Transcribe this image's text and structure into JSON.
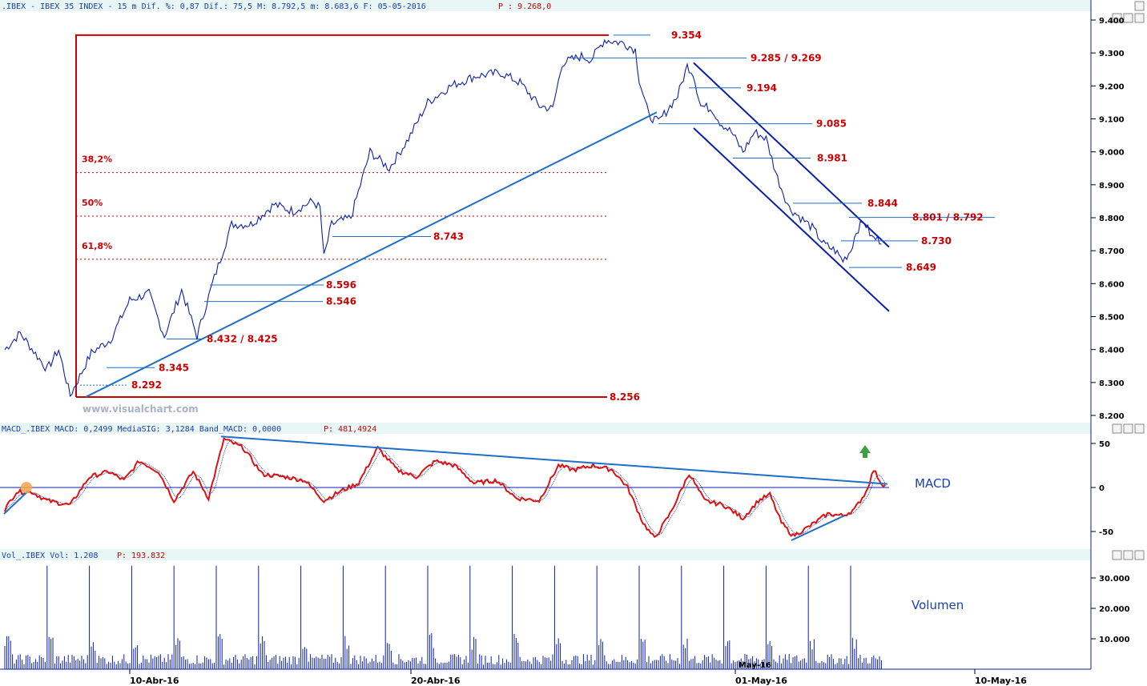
{
  "header": {
    "price": ".IBEX - IBEX 35 INDEX -  15 m Dif. %: 0,87 Dif.: 75,5 M: 8.792,5 m: 8.683,6 F: 05-05-2016",
    "price_p": "P : 9.268,0",
    "macd": "MACD_.IBEX MACD: 0,2499 MediaSIG: 3,1284 Band_MACD: 0,0000",
    "macd_p": "P: 481,4924",
    "vol": "Vol_.IBEX Vol: 1.208",
    "vol_p": "P: 193.832"
  },
  "watermark": "www.visualchart.com",
  "colors": {
    "price_line": "#0b1fa8",
    "trend": "#1f6fc9",
    "levels": "#cc0000",
    "macd": "#dd1111",
    "signal": "#0b1fa8",
    "volume": "#0b1fa8",
    "axis_bg": "#e9f6f6"
  },
  "chart_data": [
    {
      "type": "line",
      "name": "price",
      "ylim": [
        8200,
        9400
      ],
      "yticks": [
        "9.400",
        "9.300",
        "9.200",
        "9.100",
        "9.000",
        "8.900",
        "8.800",
        "8.700",
        "8.600",
        "8.500",
        "8.400",
        "8.300",
        "8.200"
      ],
      "xticks": [
        "10-Abr-16",
        "20-Abr-16",
        "01-May-16",
        "10-May-16"
      ],
      "levels": [
        {
          "label": "9.354",
          "value": 9354
        },
        {
          "label": "9.285 / 9.269",
          "value": 9285
        },
        {
          "label": "9.194",
          "value": 9194
        },
        {
          "label": "9.085",
          "value": 9085
        },
        {
          "label": "8.981",
          "value": 8981
        },
        {
          "label": "8.844",
          "value": 8844
        },
        {
          "label": "8.801 / 8.792",
          "value": 8801
        },
        {
          "label": "8.743",
          "value": 8743
        },
        {
          "label": "8.730",
          "value": 8730
        },
        {
          "label": "8.649",
          "value": 8649
        },
        {
          "label": "8.596",
          "value": 8596
        },
        {
          "label": "8.546",
          "value": 8546
        },
        {
          "label": "8.432 / 8.425",
          "value": 8432
        },
        {
          "label": "8.345",
          "value": 8345
        },
        {
          "label": "8.292",
          "value": 8292
        },
        {
          "label": "8.256",
          "value": 8256
        }
      ],
      "fibonacci": [
        {
          "label": "38,2%",
          "value": 8937
        },
        {
          "label": "50%",
          "value": 8805
        },
        {
          "label": "61,8%",
          "value": 8674
        }
      ],
      "key_points": [
        {
          "bar": 0,
          "value": 8400
        },
        {
          "bar": 8,
          "value": 8450
        },
        {
          "bar": 22,
          "value": 8340
        },
        {
          "bar": 28,
          "value": 8400
        },
        {
          "bar": 34,
          "value": 8260
        },
        {
          "bar": 45,
          "value": 8390
        },
        {
          "bar": 55,
          "value": 8430
        },
        {
          "bar": 65,
          "value": 8550
        },
        {
          "bar": 75,
          "value": 8570
        },
        {
          "bar": 83,
          "value": 8440
        },
        {
          "bar": 92,
          "value": 8580
        },
        {
          "bar": 100,
          "value": 8440
        },
        {
          "bar": 108,
          "value": 8600
        },
        {
          "bar": 118,
          "value": 8780
        },
        {
          "bar": 128,
          "value": 8780
        },
        {
          "bar": 140,
          "value": 8840
        },
        {
          "bar": 150,
          "value": 8820
        },
        {
          "bar": 160,
          "value": 8850
        },
        {
          "bar": 164,
          "value": 8830
        },
        {
          "bar": 166,
          "value": 8680
        },
        {
          "bar": 170,
          "value": 8780
        },
        {
          "bar": 180,
          "value": 8800
        },
        {
          "bar": 190,
          "value": 9000
        },
        {
          "bar": 200,
          "value": 8950
        },
        {
          "bar": 210,
          "value": 9040
        },
        {
          "bar": 220,
          "value": 9150
        },
        {
          "bar": 232,
          "value": 9200
        },
        {
          "bar": 245,
          "value": 9230
        },
        {
          "bar": 258,
          "value": 9240
        },
        {
          "bar": 268,
          "value": 9210
        },
        {
          "bar": 278,
          "value": 9140
        },
        {
          "bar": 285,
          "value": 9130
        },
        {
          "bar": 290,
          "value": 9270
        },
        {
          "bar": 300,
          "value": 9290
        },
        {
          "bar": 305,
          "value": 9280
        },
        {
          "bar": 312,
          "value": 9340
        },
        {
          "bar": 322,
          "value": 9330
        },
        {
          "bar": 328,
          "value": 9310
        },
        {
          "bar": 330,
          "value": 9220
        },
        {
          "bar": 335,
          "value": 9110
        },
        {
          "bar": 340,
          "value": 9090
        },
        {
          "bar": 345,
          "value": 9130
        },
        {
          "bar": 350,
          "value": 9170
        },
        {
          "bar": 355,
          "value": 9260
        },
        {
          "bar": 358,
          "value": 9240
        },
        {
          "bar": 362,
          "value": 9140
        },
        {
          "bar": 368,
          "value": 9130
        },
        {
          "bar": 372,
          "value": 9090
        },
        {
          "bar": 378,
          "value": 9060
        },
        {
          "bar": 384,
          "value": 9000
        },
        {
          "bar": 390,
          "value": 9060
        },
        {
          "bar": 396,
          "value": 9040
        },
        {
          "bar": 402,
          "value": 8920
        },
        {
          "bar": 408,
          "value": 8830
        },
        {
          "bar": 414,
          "value": 8800
        },
        {
          "bar": 420,
          "value": 8770
        },
        {
          "bar": 426,
          "value": 8720
        },
        {
          "bar": 432,
          "value": 8700
        },
        {
          "bar": 436,
          "value": 8670
        },
        {
          "bar": 440,
          "value": 8700
        },
        {
          "bar": 443,
          "value": 8760
        },
        {
          "bar": 447,
          "value": 8790
        },
        {
          "bar": 451,
          "value": 8740
        },
        {
          "bar": 456,
          "value": 8730
        }
      ]
    },
    {
      "type": "line",
      "name": "MACD",
      "ylim": [
        -75,
        70
      ],
      "yticks": [
        "50",
        "0",
        "-50"
      ],
      "key_points": [
        {
          "bar": 0,
          "value": -25
        },
        {
          "bar": 6,
          "value": -5
        },
        {
          "bar": 14,
          "value": -5
        },
        {
          "bar": 22,
          "value": -15
        },
        {
          "bar": 34,
          "value": -20
        },
        {
          "bar": 44,
          "value": 12
        },
        {
          "bar": 54,
          "value": 18
        },
        {
          "bar": 62,
          "value": 8
        },
        {
          "bar": 70,
          "value": 30
        },
        {
          "bar": 80,
          "value": 18
        },
        {
          "bar": 88,
          "value": -15
        },
        {
          "bar": 98,
          "value": 18
        },
        {
          "bar": 106,
          "value": -12
        },
        {
          "bar": 114,
          "value": 55
        },
        {
          "bar": 124,
          "value": 45
        },
        {
          "bar": 134,
          "value": 15
        },
        {
          "bar": 146,
          "value": 12
        },
        {
          "bar": 156,
          "value": 8
        },
        {
          "bar": 166,
          "value": -15
        },
        {
          "bar": 174,
          "value": -5
        },
        {
          "bar": 184,
          "value": 5
        },
        {
          "bar": 194,
          "value": 45
        },
        {
          "bar": 204,
          "value": 20
        },
        {
          "bar": 214,
          "value": 12
        },
        {
          "bar": 224,
          "value": 30
        },
        {
          "bar": 234,
          "value": 25
        },
        {
          "bar": 244,
          "value": 5
        },
        {
          "bar": 256,
          "value": 8
        },
        {
          "bar": 266,
          "value": -12
        },
        {
          "bar": 278,
          "value": -15
        },
        {
          "bar": 288,
          "value": 25
        },
        {
          "bar": 296,
          "value": 20
        },
        {
          "bar": 306,
          "value": 25
        },
        {
          "bar": 316,
          "value": 20
        },
        {
          "bar": 324,
          "value": 0
        },
        {
          "bar": 332,
          "value": -40
        },
        {
          "bar": 338,
          "value": -58
        },
        {
          "bar": 346,
          "value": -30
        },
        {
          "bar": 356,
          "value": 16
        },
        {
          "bar": 364,
          "value": -15
        },
        {
          "bar": 374,
          "value": -20
        },
        {
          "bar": 384,
          "value": -35
        },
        {
          "bar": 392,
          "value": -15
        },
        {
          "bar": 398,
          "value": -8
        },
        {
          "bar": 404,
          "value": -40
        },
        {
          "bar": 410,
          "value": -55
        },
        {
          "bar": 418,
          "value": -45
        },
        {
          "bar": 428,
          "value": -30
        },
        {
          "bar": 436,
          "value": -32
        },
        {
          "bar": 442,
          "value": -25
        },
        {
          "bar": 448,
          "value": -5
        },
        {
          "bar": 452,
          "value": 20
        },
        {
          "bar": 456,
          "value": 5
        },
        {
          "bar": 458,
          "value": 2
        }
      ]
    },
    {
      "type": "bar",
      "name": "Volumen",
      "ylim": [
        0,
        35000
      ],
      "yticks": [
        "30.000",
        "20.000",
        "10.000"
      ],
      "annotation": "May-16",
      "spike_bars": [
        22,
        44,
        66,
        88,
        110,
        132,
        154,
        176,
        198,
        220,
        242,
        264,
        286,
        308,
        330,
        352,
        374,
        396,
        418,
        440
      ],
      "spike_value": 34000
    }
  ],
  "panel_labels": {
    "macd": "MACD",
    "volume": "Volumen"
  }
}
